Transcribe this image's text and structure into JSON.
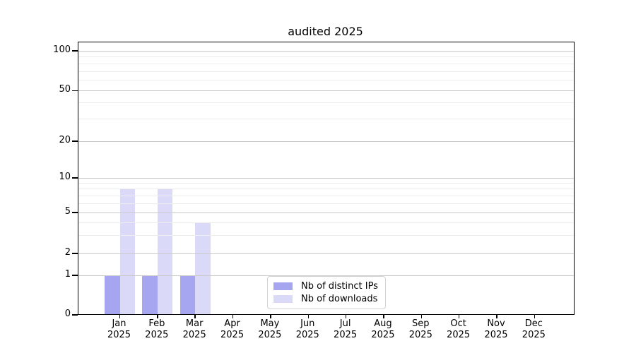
{
  "chart_data": {
    "type": "bar",
    "title": "audited 2025",
    "categories": [
      "Jan 2025",
      "Feb 2025",
      "Mar 2025",
      "Apr 2025",
      "May 2025",
      "Jun 2025",
      "Jul 2025",
      "Aug 2025",
      "Sep 2025",
      "Oct 2025",
      "Nov 2025",
      "Dec 2025"
    ],
    "series": [
      {
        "name": "Nb of distinct IPs",
        "color": "#a5a5f0",
        "values": [
          1,
          1,
          1,
          0,
          0,
          0,
          0,
          0,
          0,
          0,
          0,
          0
        ]
      },
      {
        "name": "Nb of downloads",
        "color": "#dadaf8",
        "values": [
          8,
          8,
          4,
          0,
          0,
          0,
          0,
          0,
          0,
          0,
          0,
          0
        ]
      }
    ],
    "xlabel": "",
    "ylabel": "",
    "yscale": "log-like with linear 0-1 segment",
    "yticks": [
      0,
      1,
      2,
      5,
      10,
      20,
      50,
      100
    ],
    "ytick_labels": [
      "0",
      "1",
      "2",
      "5",
      "10",
      "20",
      "50",
      "100"
    ],
    "minor_gridlines": [
      3,
      4,
      6,
      7,
      8,
      9,
      30,
      40,
      60,
      70,
      80,
      90
    ],
    "ylim": [
      0,
      110
    ],
    "grid": "horizontal major + minor",
    "legend_position": "inside lower-center"
  },
  "colors": {
    "axis": "#000000",
    "grid_major": "#c9c9c9",
    "grid_minor": "#ededed",
    "legend_border": "#d2d2d2",
    "background": "#ffffff"
  }
}
